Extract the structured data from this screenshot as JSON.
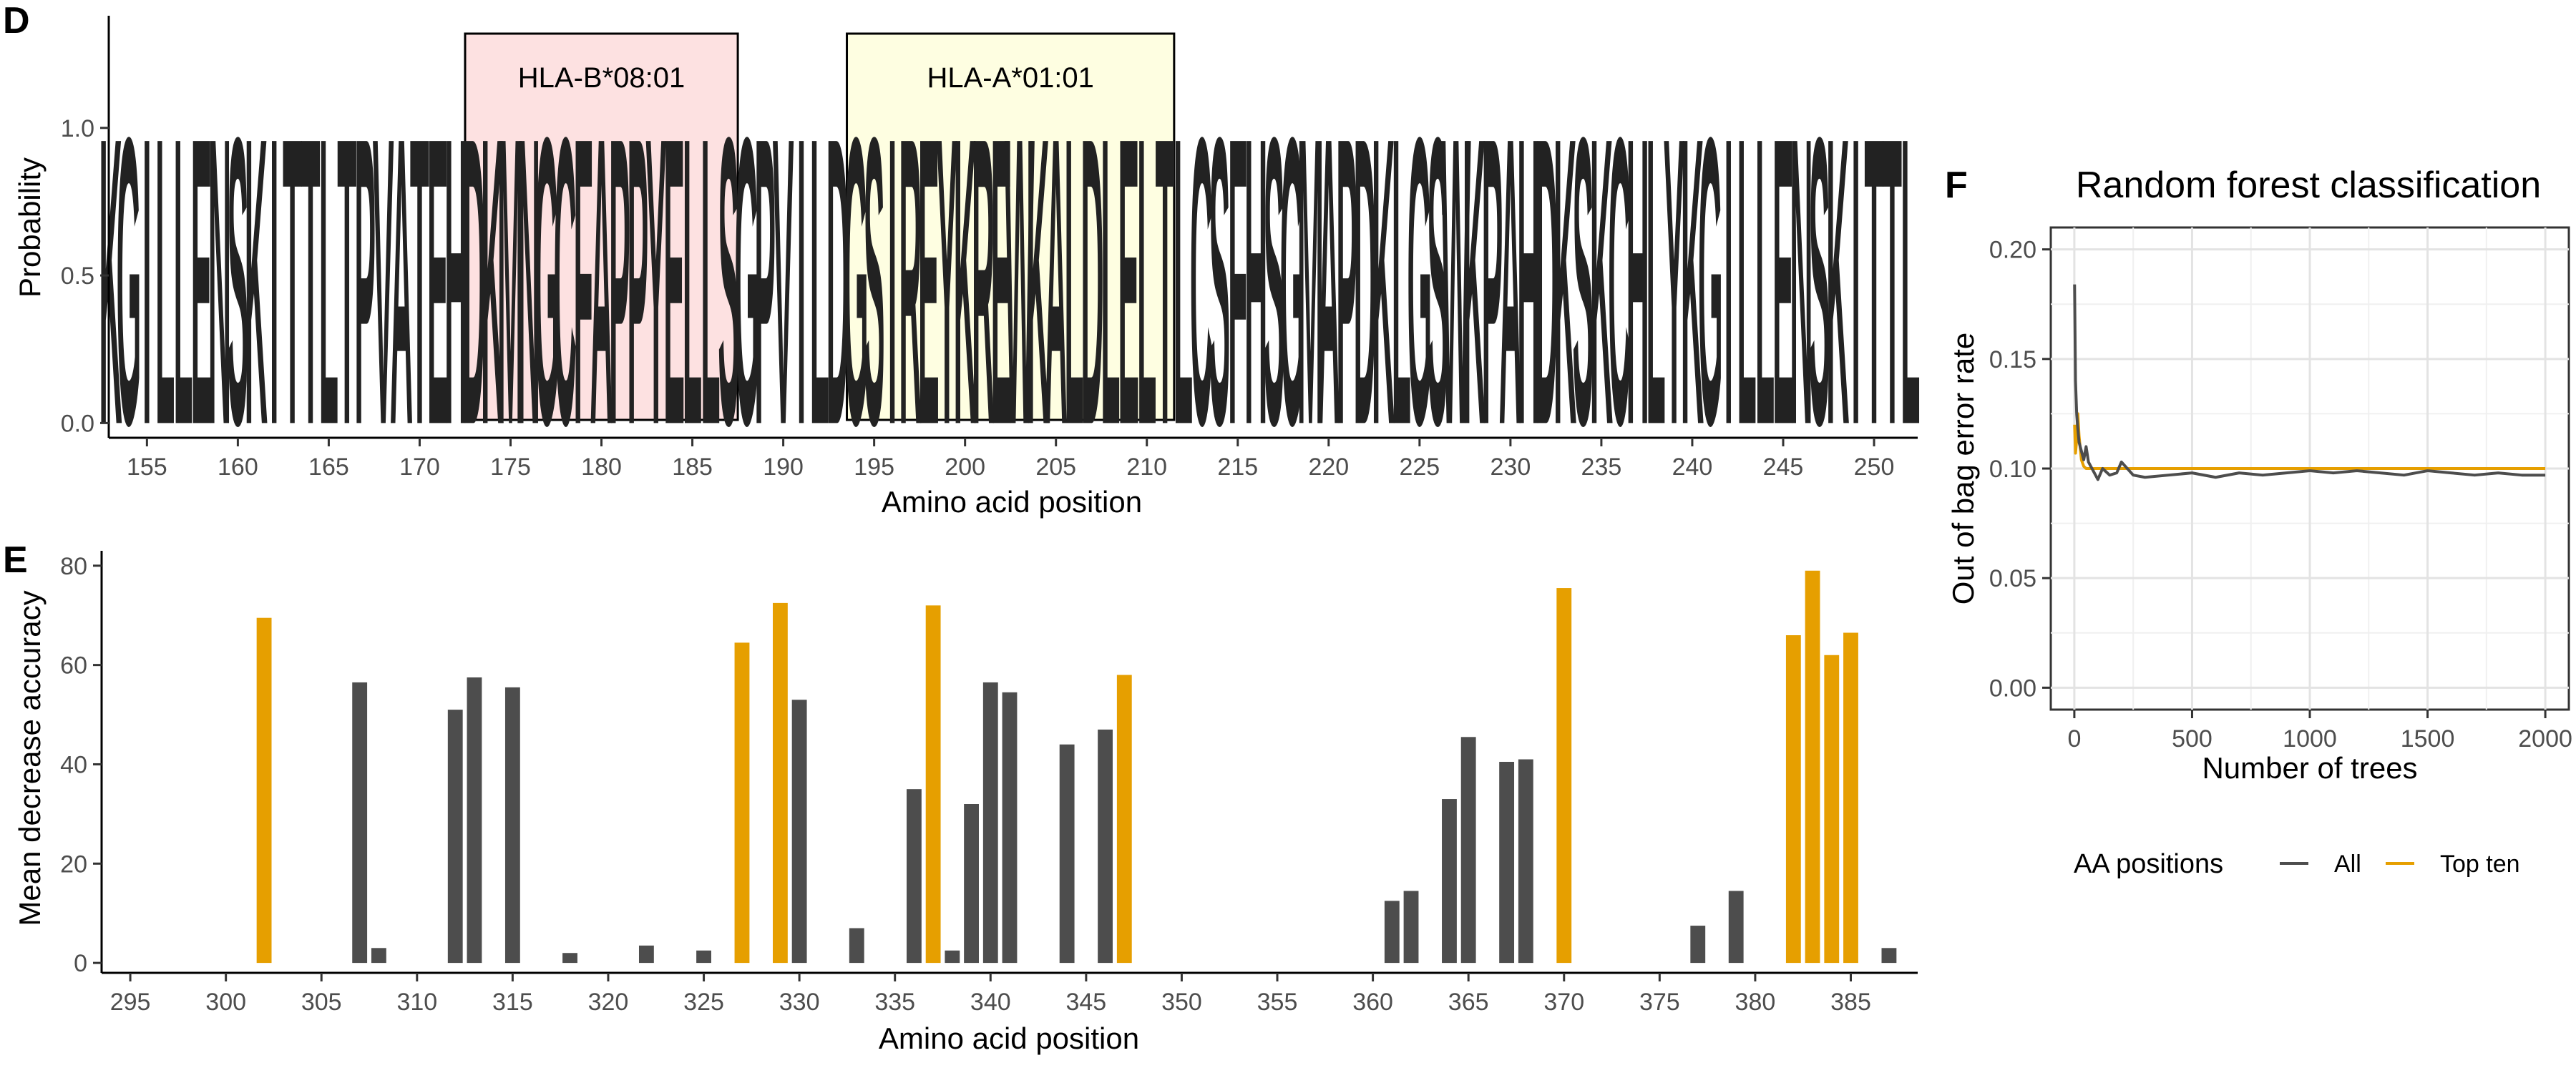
{
  "colors": {
    "all": "#4d4d4d",
    "top_ten": "#e69f00",
    "hla_b_fill": "#fde1e1",
    "hla_a_fill": "#fefee1"
  },
  "chart_data": [
    {
      "panel": "D",
      "type": "logo",
      "xlabel": "Amino acid position",
      "ylabel": "Probability",
      "xticks": [
        155,
        160,
        165,
        170,
        175,
        180,
        185,
        190,
        195,
        200,
        205,
        210,
        215,
        220,
        225,
        230,
        235,
        240,
        245,
        250
      ],
      "yticks": [
        "0.0",
        "0.5",
        "1.0"
      ],
      "xlim": [
        152.9,
        252.4
      ],
      "ylim": [
        -0.05,
        1.38
      ],
      "logo_text": "KGILLENSKITTLTPVATEHDKMNGCFAPPYELLSGPVILDGSIREYKREWKALDLELTLCSFHSGMAPDKLGSWKPAHDKSKCHLY",
      "highlights": [
        {
          "label": "HLA-B*08:01",
          "start": 172.5,
          "end": 187.5,
          "color": "pink"
        },
        {
          "label": "HLA-A*01:01",
          "start": 193.5,
          "end": 211.5,
          "color": "lightyellow"
        }
      ]
    },
    {
      "panel": "E",
      "type": "bar",
      "xlabel": "Amino acid position",
      "ylabel": "Mean decrease accuracy",
      "xticks": [
        295,
        300,
        305,
        310,
        315,
        320,
        325,
        330,
        335,
        340,
        345,
        350,
        355,
        360,
        365,
        370,
        375,
        380,
        385
      ],
      "yticks": [
        0,
        20,
        40,
        60,
        80
      ],
      "xlim": [
        293.5,
        388.5
      ],
      "ylim": [
        -2,
        83
      ],
      "bars": [
        {
          "x": 302,
          "value": 69.5,
          "group": "Top ten"
        },
        {
          "x": 307,
          "value": 56.5,
          "group": "All"
        },
        {
          "x": 308,
          "value": 3,
          "group": "All"
        },
        {
          "x": 312,
          "value": 51,
          "group": "All"
        },
        {
          "x": 313,
          "value": 57.5,
          "group": "All"
        },
        {
          "x": 315,
          "value": 55.5,
          "group": "All"
        },
        {
          "x": 318,
          "value": 2,
          "group": "All"
        },
        {
          "x": 322,
          "value": 3.5,
          "group": "All"
        },
        {
          "x": 325,
          "value": 2.5,
          "group": "All"
        },
        {
          "x": 327,
          "value": 64.5,
          "group": "Top ten"
        },
        {
          "x": 329,
          "value": 72.5,
          "group": "Top ten"
        },
        {
          "x": 330,
          "value": 53,
          "group": "All"
        },
        {
          "x": 333,
          "value": 7,
          "group": "All"
        },
        {
          "x": 336,
          "value": 35,
          "group": "All"
        },
        {
          "x": 337,
          "value": 72,
          "group": "Top ten"
        },
        {
          "x": 338,
          "value": 2.5,
          "group": "All"
        },
        {
          "x": 339,
          "value": 32,
          "group": "All"
        },
        {
          "x": 340,
          "value": 56.5,
          "group": "All"
        },
        {
          "x": 341,
          "value": 54.5,
          "group": "All"
        },
        {
          "x": 344,
          "value": 44,
          "group": "All"
        },
        {
          "x": 346,
          "value": 47,
          "group": "All"
        },
        {
          "x": 347,
          "value": 58,
          "group": "Top ten"
        },
        {
          "x": 361,
          "value": 12.5,
          "group": "All"
        },
        {
          "x": 362,
          "value": 14.5,
          "group": "All"
        },
        {
          "x": 364,
          "value": 33,
          "group": "All"
        },
        {
          "x": 365,
          "value": 45.5,
          "group": "All"
        },
        {
          "x": 367,
          "value": 40.5,
          "group": "All"
        },
        {
          "x": 368,
          "value": 41,
          "group": "All"
        },
        {
          "x": 370,
          "value": 75.5,
          "group": "Top ten"
        },
        {
          "x": 377,
          "value": 7.5,
          "group": "All"
        },
        {
          "x": 379,
          "value": 14.5,
          "group": "All"
        },
        {
          "x": 382,
          "value": 66,
          "group": "Top ten"
        },
        {
          "x": 383,
          "value": 79,
          "group": "Top ten"
        },
        {
          "x": 384,
          "value": 62,
          "group": "Top ten"
        },
        {
          "x": 385,
          "value": 66.5,
          "group": "Top ten"
        },
        {
          "x": 387,
          "value": 3,
          "group": "All"
        }
      ]
    },
    {
      "panel": "F",
      "type": "line",
      "title": "Random forest classification",
      "xlabel": "Number of trees",
      "ylabel": "Out of bag error rate",
      "xticks": [
        0,
        500,
        1000,
        1500,
        2000
      ],
      "yticks": [
        "0.00",
        "0.05",
        "0.10",
        "0.15",
        "0.20"
      ],
      "xlim": [
        -100,
        2100
      ],
      "ylim": [
        -0.01,
        0.21
      ],
      "grid": true,
      "legend": {
        "title": "AA positions",
        "position": "bottom",
        "entries": [
          "All",
          "Top ten"
        ]
      },
      "series": [
        {
          "name": "All",
          "x": [
            1,
            5,
            10,
            15,
            20,
            30,
            40,
            50,
            60,
            80,
            100,
            120,
            150,
            180,
            200,
            250,
            300,
            400,
            500,
            600,
            700,
            800,
            900,
            1000,
            1100,
            1200,
            1300,
            1400,
            1500,
            1600,
            1700,
            1800,
            1900,
            2000
          ],
          "y": [
            0.184,
            0.14,
            0.125,
            0.118,
            0.112,
            0.108,
            0.104,
            0.11,
            0.103,
            0.099,
            0.095,
            0.1,
            0.097,
            0.098,
            0.103,
            0.097,
            0.096,
            0.097,
            0.098,
            0.096,
            0.098,
            0.097,
            0.098,
            0.099,
            0.098,
            0.099,
            0.098,
            0.097,
            0.099,
            0.098,
            0.097,
            0.098,
            0.097,
            0.097
          ]
        },
        {
          "name": "Top ten",
          "x": [
            1,
            5,
            10,
            15,
            20,
            30,
            40,
            50,
            60,
            80,
            100,
            150,
            200,
            300,
            500,
            1000,
            1500,
            2000
          ],
          "y": [
            0.12,
            0.107,
            0.113,
            0.125,
            0.115,
            0.104,
            0.101,
            0.1,
            0.1,
            0.1,
            0.1,
            0.1,
            0.1,
            0.1,
            0.1,
            0.1,
            0.1,
            0.1
          ]
        }
      ]
    }
  ]
}
